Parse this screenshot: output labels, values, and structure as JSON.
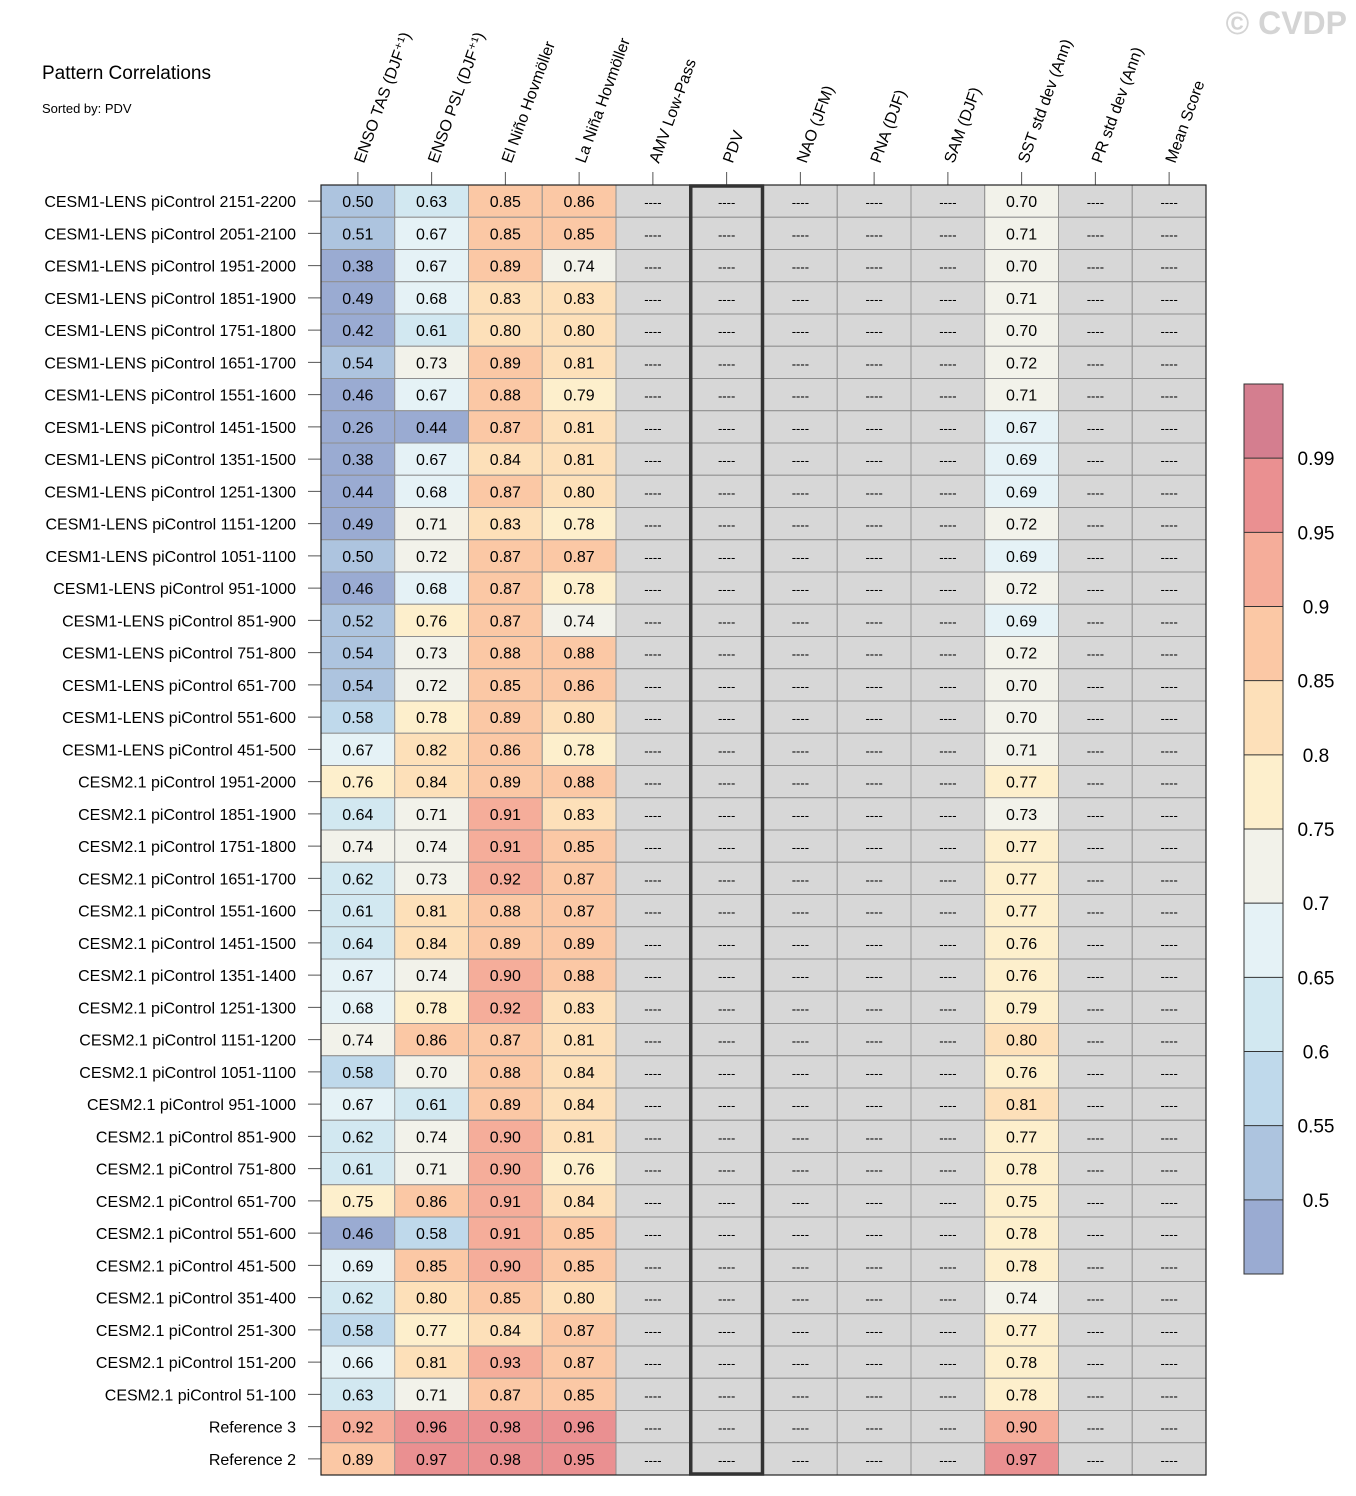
{
  "chart_data": {
    "type": "heatmap",
    "title": "Pattern Correlations",
    "subtitle": "Sorted by: PDV",
    "watermark": "© CVDP",
    "columns": [
      "ENSO TAS (DJF⁺¹)",
      "ENSO PSL (DJF⁺¹)",
      "El Niño Hovmöller",
      "La Niña Hovmöller",
      "AMV Low-Pass",
      "PDV",
      "NAO (JFM)",
      "PNA (DJF)",
      "SAM (DJF)",
      "SST std dev (Ann)",
      "PR std dev (Ann)",
      "Mean Score"
    ],
    "highlighted_column": "PDV",
    "rows": [
      "CESM1-LENS piControl 2151-2200",
      "CESM1-LENS piControl 2051-2100",
      "CESM1-LENS piControl 1951-2000",
      "CESM1-LENS piControl 1851-1900",
      "CESM1-LENS piControl 1751-1800",
      "CESM1-LENS piControl 1651-1700",
      "CESM1-LENS piControl 1551-1600",
      "CESM1-LENS piControl 1451-1500",
      "CESM1-LENS piControl 1351-1500",
      "CESM1-LENS piControl 1251-1300",
      "CESM1-LENS piControl 1151-1200",
      "CESM1-LENS piControl 1051-1100",
      "CESM1-LENS piControl 951-1000",
      "CESM1-LENS piControl 851-900",
      "CESM1-LENS piControl 751-800",
      "CESM1-LENS piControl 651-700",
      "CESM1-LENS piControl 551-600",
      "CESM1-LENS piControl 451-500",
      "CESM2.1 piControl 1951-2000",
      "CESM2.1 piControl 1851-1900",
      "CESM2.1 piControl 1751-1800",
      "CESM2.1 piControl 1651-1700",
      "CESM2.1 piControl 1551-1600",
      "CESM2.1 piControl 1451-1500",
      "CESM2.1 piControl 1351-1400",
      "CESM2.1 piControl 1251-1300",
      "CESM2.1 piControl 1151-1200",
      "CESM2.1 piControl 1051-1100",
      "CESM2.1 piControl 951-1000",
      "CESM2.1 piControl 851-900",
      "CESM2.1 piControl 751-800",
      "CESM2.1 piControl 651-700",
      "CESM2.1 piControl 551-600",
      "CESM2.1 piControl 451-500",
      "CESM2.1 piControl 351-400",
      "CESM2.1 piControl 251-300",
      "CESM2.1 piControl 151-200",
      "CESM2.1 piControl 51-100",
      "Reference 3",
      "Reference 2"
    ],
    "values": [
      [
        0.5,
        0.63,
        0.85,
        0.86,
        null,
        null,
        null,
        null,
        null,
        0.7,
        null,
        null
      ],
      [
        0.51,
        0.67,
        0.85,
        0.85,
        null,
        null,
        null,
        null,
        null,
        0.71,
        null,
        null
      ],
      [
        0.38,
        0.67,
        0.89,
        0.74,
        null,
        null,
        null,
        null,
        null,
        0.7,
        null,
        null
      ],
      [
        0.49,
        0.68,
        0.83,
        0.83,
        null,
        null,
        null,
        null,
        null,
        0.71,
        null,
        null
      ],
      [
        0.42,
        0.61,
        0.8,
        0.8,
        null,
        null,
        null,
        null,
        null,
        0.7,
        null,
        null
      ],
      [
        0.54,
        0.73,
        0.89,
        0.81,
        null,
        null,
        null,
        null,
        null,
        0.72,
        null,
        null
      ],
      [
        0.46,
        0.67,
        0.88,
        0.79,
        null,
        null,
        null,
        null,
        null,
        0.71,
        null,
        null
      ],
      [
        0.26,
        0.44,
        0.87,
        0.81,
        null,
        null,
        null,
        null,
        null,
        0.67,
        null,
        null
      ],
      [
        0.38,
        0.67,
        0.84,
        0.81,
        null,
        null,
        null,
        null,
        null,
        0.69,
        null,
        null
      ],
      [
        0.44,
        0.68,
        0.87,
        0.8,
        null,
        null,
        null,
        null,
        null,
        0.69,
        null,
        null
      ],
      [
        0.49,
        0.71,
        0.83,
        0.78,
        null,
        null,
        null,
        null,
        null,
        0.72,
        null,
        null
      ],
      [
        0.5,
        0.72,
        0.87,
        0.87,
        null,
        null,
        null,
        null,
        null,
        0.69,
        null,
        null
      ],
      [
        0.46,
        0.68,
        0.87,
        0.78,
        null,
        null,
        null,
        null,
        null,
        0.72,
        null,
        null
      ],
      [
        0.52,
        0.76,
        0.87,
        0.74,
        null,
        null,
        null,
        null,
        null,
        0.69,
        null,
        null
      ],
      [
        0.54,
        0.73,
        0.88,
        0.88,
        null,
        null,
        null,
        null,
        null,
        0.72,
        null,
        null
      ],
      [
        0.54,
        0.72,
        0.85,
        0.86,
        null,
        null,
        null,
        null,
        null,
        0.7,
        null,
        null
      ],
      [
        0.58,
        0.78,
        0.89,
        0.8,
        null,
        null,
        null,
        null,
        null,
        0.7,
        null,
        null
      ],
      [
        0.67,
        0.82,
        0.86,
        0.78,
        null,
        null,
        null,
        null,
        null,
        0.71,
        null,
        null
      ],
      [
        0.76,
        0.84,
        0.89,
        0.88,
        null,
        null,
        null,
        null,
        null,
        0.77,
        null,
        null
      ],
      [
        0.64,
        0.71,
        0.91,
        0.83,
        null,
        null,
        null,
        null,
        null,
        0.73,
        null,
        null
      ],
      [
        0.74,
        0.74,
        0.91,
        0.85,
        null,
        null,
        null,
        null,
        null,
        0.77,
        null,
        null
      ],
      [
        0.62,
        0.73,
        0.92,
        0.87,
        null,
        null,
        null,
        null,
        null,
        0.77,
        null,
        null
      ],
      [
        0.61,
        0.81,
        0.88,
        0.87,
        null,
        null,
        null,
        null,
        null,
        0.77,
        null,
        null
      ],
      [
        0.64,
        0.84,
        0.89,
        0.89,
        null,
        null,
        null,
        null,
        null,
        0.76,
        null,
        null
      ],
      [
        0.67,
        0.74,
        0.9,
        0.88,
        null,
        null,
        null,
        null,
        null,
        0.76,
        null,
        null
      ],
      [
        0.68,
        0.78,
        0.92,
        0.83,
        null,
        null,
        null,
        null,
        null,
        0.79,
        null,
        null
      ],
      [
        0.74,
        0.86,
        0.87,
        0.81,
        null,
        null,
        null,
        null,
        null,
        0.8,
        null,
        null
      ],
      [
        0.58,
        0.7,
        0.88,
        0.84,
        null,
        null,
        null,
        null,
        null,
        0.76,
        null,
        null
      ],
      [
        0.67,
        0.61,
        0.89,
        0.84,
        null,
        null,
        null,
        null,
        null,
        0.81,
        null,
        null
      ],
      [
        0.62,
        0.74,
        0.9,
        0.81,
        null,
        null,
        null,
        null,
        null,
        0.77,
        null,
        null
      ],
      [
        0.61,
        0.71,
        0.9,
        0.76,
        null,
        null,
        null,
        null,
        null,
        0.78,
        null,
        null
      ],
      [
        0.75,
        0.86,
        0.91,
        0.84,
        null,
        null,
        null,
        null,
        null,
        0.75,
        null,
        null
      ],
      [
        0.46,
        0.58,
        0.91,
        0.85,
        null,
        null,
        null,
        null,
        null,
        0.78,
        null,
        null
      ],
      [
        0.69,
        0.85,
        0.9,
        0.85,
        null,
        null,
        null,
        null,
        null,
        0.78,
        null,
        null
      ],
      [
        0.62,
        0.8,
        0.85,
        0.8,
        null,
        null,
        null,
        null,
        null,
        0.74,
        null,
        null
      ],
      [
        0.58,
        0.77,
        0.84,
        0.87,
        null,
        null,
        null,
        null,
        null,
        0.77,
        null,
        null
      ],
      [
        0.66,
        0.81,
        0.93,
        0.87,
        null,
        null,
        null,
        null,
        null,
        0.78,
        null,
        null
      ],
      [
        0.63,
        0.71,
        0.87,
        0.85,
        null,
        null,
        null,
        null,
        null,
        0.78,
        null,
        null
      ],
      [
        0.92,
        0.96,
        0.98,
        0.96,
        null,
        null,
        null,
        null,
        null,
        0.9,
        null,
        null
      ],
      [
        0.89,
        0.97,
        0.98,
        0.95,
        null,
        null,
        null,
        null,
        null,
        0.97,
        null,
        null
      ]
    ],
    "missing_label": "----",
    "missing_color": "#d7d7d7",
    "colorbar": {
      "levels": [
        0.5,
        0.55,
        0.6,
        0.65,
        0.7,
        0.75,
        0.8,
        0.85,
        0.9,
        0.95,
        0.99
      ],
      "labels": [
        "0.5",
        "0.55",
        "0.6",
        "0.65",
        "0.7",
        "0.75",
        "0.8",
        "0.85",
        "0.9",
        "0.95",
        "0.99"
      ],
      "colors": [
        "#9aabd2",
        "#adc4df",
        "#bfd9eb",
        "#d2e8f1",
        "#e5f2f6",
        "#f2f2ea",
        "#fdefcc",
        "#fde0b9",
        "#fbc8a5",
        "#f5ad9a",
        "#ea9091",
        "#d47e8f"
      ]
    }
  }
}
